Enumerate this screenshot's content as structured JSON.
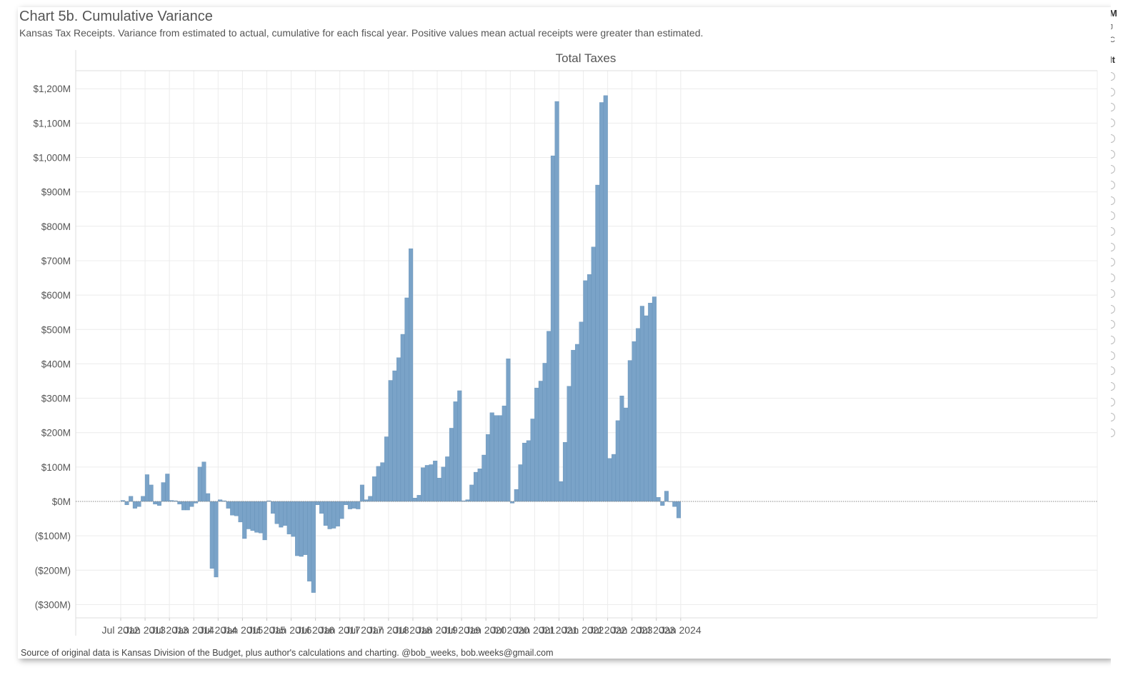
{
  "title": "Chart 5b. Cumulative Variance",
  "subtitle": "Kansas Tax Receipts. Variance from estimated to actual, cumulative for each fiscal year.  Positive values mean actual receipts were greater than estimated.",
  "source": "Source of original data is Kansas Division of the Budget, plus author's calculations and charting. @bob_weeks, bob.weeks@gmail.com",
  "right_panel": {
    "t1": "M",
    "t2": "J",
    "t3": "C",
    "t4": "It"
  },
  "colors": {
    "bar": "#7aa3c8",
    "bar_stroke": "#5f8bb3",
    "grid": "#ececec",
    "zero_line": "#888888"
  },
  "chart_data": {
    "type": "bar",
    "title": "Total Taxes",
    "ylabel": "",
    "xlabel": "",
    "ylim": [
      -340,
      1240
    ],
    "y_ticks": [
      1200,
      1100,
      1000,
      900,
      800,
      700,
      600,
      500,
      400,
      300,
      200,
      100,
      0,
      -100,
      -200,
      -300
    ],
    "y_tick_labels": [
      "$1,200M",
      "$1,100M",
      "$1,000M",
      "$900M",
      "$800M",
      "$700M",
      "$600M",
      "$500M",
      "$400M",
      "$300M",
      "$200M",
      "$100M",
      "$0M",
      "($100M)",
      "($200M)",
      "($300M)"
    ],
    "x_start": "2012-07",
    "x_tick_labels": [
      "Jul 2012",
      "Jan 2013",
      "Jul 2013",
      "Jan 2014",
      "Jul 2014",
      "Jan 2015",
      "Jul 2015",
      "Jan 2016",
      "Jul 2016",
      "Jan 2017",
      "Jul 2017",
      "Jan 2018",
      "Jul 2018",
      "Jan 2019",
      "Jul 2019",
      "Jan 2020",
      "Jul 2020",
      "Jan 2021",
      "Jul 2021",
      "Jan 2022",
      "Jul 2022",
      "Jan 2023",
      "Jul 2023",
      "Jan 2024"
    ],
    "series": [
      {
        "values": [
          3,
          -10,
          15,
          -20,
          -15,
          15,
          78,
          48,
          -8,
          -12,
          55,
          80,
          3,
          2,
          -8,
          -25,
          -25,
          -15,
          -5,
          100,
          115,
          23,
          -195,
          -220,
          5,
          2,
          -20,
          -40,
          -42,
          -60,
          -108,
          -80,
          -85,
          -90,
          -92,
          -112,
          2,
          -35,
          -65,
          -75,
          -70,
          -95,
          -102,
          -158,
          -160,
          -155,
          -232,
          -265,
          -10,
          -35,
          -70,
          -80,
          -78,
          -72,
          -50,
          -10,
          -22,
          -20,
          -22,
          48,
          5,
          15,
          72,
          102,
          113,
          188,
          352,
          380,
          418,
          486,
          592,
          735,
          10,
          18,
          98,
          105,
          107,
          118,
          68,
          100,
          130,
          213,
          290,
          322,
          2,
          5,
          48,
          85,
          95,
          135,
          195,
          258,
          250,
          250,
          278,
          415,
          -5,
          35,
          107,
          170,
          177,
          240,
          330,
          350,
          402,
          495,
          1005,
          1163,
          58,
          172,
          335,
          440,
          457,
          522,
          642,
          660,
          740,
          920,
          1160,
          1180,
          125,
          137,
          235,
          307,
          272,
          410,
          465,
          503,
          568,
          540,
          577,
          595,
          12,
          -12,
          30,
          0,
          -15,
          -48
        ]
      }
    ]
  }
}
